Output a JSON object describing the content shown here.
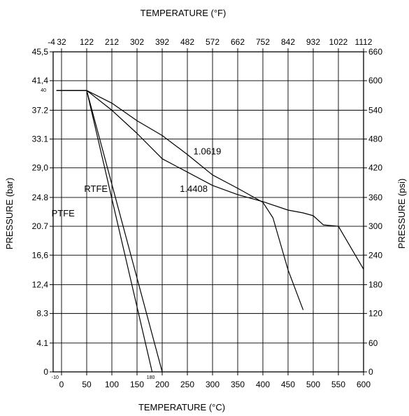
{
  "chart_data": {
    "type": "line",
    "title": "",
    "x_axis_bottom": {
      "label": "TEMPERATURE (°C)",
      "range": [
        -10,
        600
      ],
      "ticks": [
        "0",
        "50",
        "100",
        "150",
        "200",
        "250",
        "300",
        "350",
        "400",
        "450",
        "500",
        "550",
        "600"
      ],
      "extra_ticks": [
        {
          "value": -10,
          "label": "-10"
        },
        {
          "value": 180,
          "label": "180"
        }
      ]
    },
    "x_axis_top": {
      "label": "TEMPERATURE (°F)",
      "ticks": [
        "-4",
        "32",
        "122",
        "212",
        "302",
        "392",
        "482",
        "572",
        "662",
        "752",
        "842",
        "932",
        "1022",
        "1112"
      ]
    },
    "y_axis_left": {
      "label": "PRESSURE (bar)",
      "range": [
        0,
        45.5
      ],
      "ticks": [
        "0",
        "4.1",
        "8.3",
        "12,4",
        "16,6",
        "20.7",
        "24.8",
        "29,0",
        "33.1",
        "37.2",
        "41,4",
        "45,5"
      ],
      "extra_ticks": [
        {
          "value": 40,
          "label": "40"
        }
      ]
    },
    "y_axis_right": {
      "label": "PRESSURE (psi)",
      "ticks": [
        "0",
        "60",
        "120",
        "180",
        "240",
        "300",
        "360",
        "420",
        "480",
        "540",
        "600",
        "660"
      ]
    },
    "grid": true,
    "series": [
      {
        "name": "PTFE",
        "label_at": [
          -20,
          22.1
        ],
        "x": [
          -10,
          50,
          180
        ],
        "y": [
          40,
          40,
          0
        ]
      },
      {
        "name": "RTFE",
        "label_at": [
          45,
          25.6
        ],
        "x": [
          -10,
          50,
          200
        ],
        "y": [
          40,
          40,
          0
        ]
      },
      {
        "name": "1.4408",
        "label_at": [
          235,
          25.6
        ],
        "x": [
          -10,
          50,
          100,
          150,
          200,
          300,
          350,
          400,
          450,
          480,
          500,
          520,
          550,
          600
        ],
        "y": [
          40,
          40,
          37.2,
          33.9,
          30.3,
          26.5,
          25.2,
          24.2,
          23,
          22.6,
          22.2,
          20.9,
          20.7,
          14.6
        ]
      },
      {
        "name": "1.0619",
        "label_at": [
          262,
          30.9
        ],
        "x": [
          -10,
          50,
          100,
          150,
          200,
          250,
          300,
          350,
          400,
          420,
          450,
          480
        ],
        "y": [
          40,
          40,
          38.2,
          35.7,
          33.6,
          30.9,
          28,
          26.1,
          24.1,
          21.9,
          14.5,
          8.8
        ]
      }
    ]
  }
}
